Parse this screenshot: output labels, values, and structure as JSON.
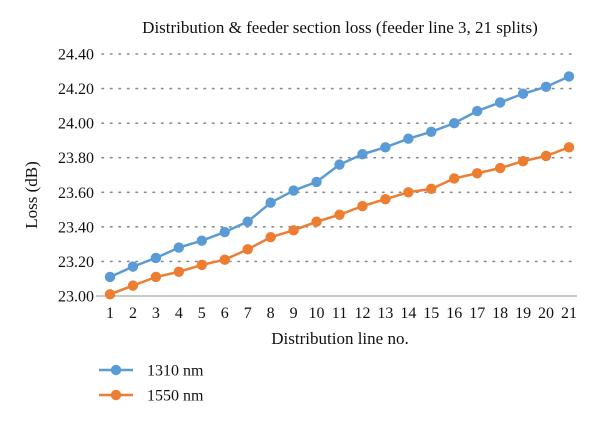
{
  "chart_data": {
    "type": "line",
    "title": "Distribution & feeder section loss (feeder line 3, 21 splits)",
    "xlabel": "Distribution line no.",
    "ylabel": "Loss (dB)",
    "categories": [
      "1",
      "2",
      "3",
      "4",
      "5",
      "6",
      "7",
      "8",
      "9",
      "10",
      "11",
      "12",
      "13",
      "14",
      "15",
      "16",
      "17",
      "18",
      "19",
      "20",
      "21"
    ],
    "ylim": [
      23.0,
      24.4
    ],
    "yticks": [
      "23.00",
      "23.20",
      "23.40",
      "23.60",
      "23.80",
      "24.00",
      "24.20",
      "24.40"
    ],
    "grid": "horizontal-dotted",
    "legend": "bottom-left",
    "series": [
      {
        "name": "1310 nm",
        "color": "#5B9BD5",
        "values": [
          23.11,
          23.17,
          23.22,
          23.28,
          23.32,
          23.37,
          23.43,
          23.54,
          23.61,
          23.66,
          23.76,
          23.82,
          23.86,
          23.91,
          23.95,
          24.0,
          24.07,
          24.12,
          24.17,
          24.21,
          24.27
        ]
      },
      {
        "name": "1550 nm",
        "color": "#ED7D31",
        "values": [
          23.01,
          23.06,
          23.11,
          23.14,
          23.18,
          23.21,
          23.27,
          23.34,
          23.38,
          23.43,
          23.47,
          23.52,
          23.56,
          23.6,
          23.62,
          23.68,
          23.71,
          23.74,
          23.78,
          23.81,
          23.86
        ]
      }
    ]
  }
}
